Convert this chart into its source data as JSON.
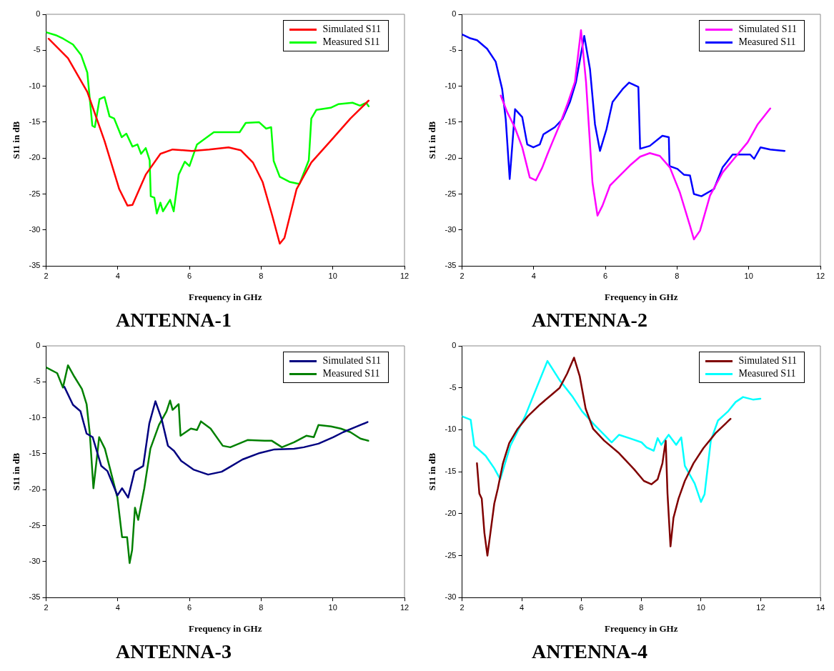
{
  "chart_data": [
    {
      "type": "line",
      "title": "ANTENNA-1",
      "xlabel": "Frequency in GHz",
      "ylabel": "S11 in dB",
      "xlim": [
        2,
        12
      ],
      "ylim": [
        -35,
        0
      ],
      "xticks": [
        2,
        4,
        6,
        8,
        10,
        12
      ],
      "yticks": [
        -35,
        -30,
        -25,
        -20,
        -15,
        -10,
        -5,
        0
      ],
      "grid": false,
      "legend": "top right",
      "marker": "none",
      "line_style": "solid",
      "series": [
        {
          "name": "Simulated S11",
          "color": "#ff0000",
          "x": [
            2.07,
            2.61,
            3.15,
            3.63,
            4.04,
            4.27,
            4.41,
            4.78,
            5.19,
            5.53,
            6.07,
            6.55,
            7.09,
            7.43,
            7.77,
            8.04,
            8.31,
            8.52,
            8.65,
            8.99,
            9.4,
            9.94,
            10.49,
            11.0
          ],
          "values": [
            -3.4,
            -6.1,
            -10.8,
            -17.6,
            -24.3,
            -26.6,
            -26.5,
            -22.3,
            -19.4,
            -18.8,
            -19.0,
            -18.8,
            -18.5,
            -18.9,
            -20.6,
            -23.3,
            -28.0,
            -31.9,
            -31.1,
            -24.3,
            -20.6,
            -17.6,
            -14.5,
            -12.0
          ]
        },
        {
          "name": "Measured S11",
          "color": "#00ff00",
          "x": [
            2.0,
            2.27,
            2.48,
            2.75,
            2.98,
            3.15,
            3.29,
            3.36,
            3.49,
            3.63,
            3.77,
            3.9,
            4.11,
            4.24,
            4.41,
            4.55,
            4.65,
            4.78,
            4.89,
            4.92,
            5.02,
            5.09,
            5.19,
            5.26,
            5.46,
            5.56,
            5.7,
            5.87,
            6.0,
            6.21,
            6.68,
            7.09,
            7.4,
            7.57,
            7.94,
            8.14,
            8.28,
            8.35,
            8.52,
            8.79,
            9.07,
            9.33,
            9.4,
            9.54,
            9.94,
            10.15,
            10.55,
            10.76,
            10.93,
            11.0
          ],
          "values": [
            -2.5,
            -2.9,
            -3.4,
            -4.2,
            -5.7,
            -8.1,
            -15.5,
            -15.7,
            -11.8,
            -11.5,
            -14.2,
            -14.5,
            -17.1,
            -16.6,
            -18.4,
            -18.1,
            -19.4,
            -18.6,
            -20.3,
            -25.3,
            -25.5,
            -27.7,
            -26.2,
            -27.4,
            -25.8,
            -27.4,
            -22.3,
            -20.5,
            -21.1,
            -18.1,
            -16.4,
            -16.4,
            -16.4,
            -15.1,
            -15.0,
            -15.9,
            -15.7,
            -20.4,
            -22.6,
            -23.3,
            -23.6,
            -20.3,
            -14.5,
            -13.3,
            -13.0,
            -12.5,
            -12.3,
            -12.7,
            -12.3,
            -12.8
          ]
        }
      ]
    },
    {
      "type": "line",
      "title": "ANTENNA-2",
      "xlabel": "Frequency in GHz",
      "ylabel": "S11 in dB",
      "xlim": [
        2,
        12
      ],
      "ylim": [
        -35,
        0
      ],
      "xticks": [
        2,
        4,
        6,
        8,
        10,
        12
      ],
      "yticks": [
        -35,
        -30,
        -25,
        -20,
        -15,
        -10,
        -5,
        0
      ],
      "grid": false,
      "legend": "top right",
      "marker": "none",
      "line_style": "solid",
      "series": [
        {
          "name": "Simulated S11",
          "color": "#ff00ff",
          "x": [
            3.08,
            3.26,
            3.47,
            3.68,
            3.89,
            4.06,
            4.24,
            4.38,
            4.52,
            4.73,
            4.94,
            5.15,
            5.32,
            5.46,
            5.64,
            5.78,
            5.92,
            6.13,
            6.41,
            6.69,
            6.97,
            7.24,
            7.52,
            7.8,
            8.08,
            8.36,
            8.47,
            8.64,
            8.92,
            9.27,
            9.62,
            9.97,
            10.25,
            10.6
          ],
          "values": [
            -11.3,
            -13.6,
            -15.7,
            -18.5,
            -22.7,
            -23.1,
            -21.3,
            -19.5,
            -17.8,
            -15.3,
            -12.5,
            -9.4,
            -2.2,
            -9.4,
            -23.4,
            -28.0,
            -26.6,
            -23.8,
            -22.4,
            -21.0,
            -19.8,
            -19.3,
            -19.7,
            -21.3,
            -24.8,
            -29.4,
            -31.3,
            -30.1,
            -25.2,
            -22.0,
            -19.9,
            -17.8,
            -15.3,
            -13.1
          ]
        },
        {
          "name": "Measured S11",
          "color": "#0000ff",
          "x": [
            2.0,
            2.21,
            2.42,
            2.7,
            2.94,
            3.12,
            3.22,
            3.33,
            3.48,
            3.68,
            3.82,
            3.99,
            4.17,
            4.27,
            4.59,
            4.8,
            5.01,
            5.18,
            5.41,
            5.57,
            5.71,
            5.85,
            6.03,
            6.2,
            6.48,
            6.66,
            6.92,
            6.97,
            7.24,
            7.59,
            7.77,
            7.79,
            8.01,
            8.19,
            8.36,
            8.47,
            8.68,
            9.03,
            9.27,
            9.55,
            10.04,
            10.15,
            10.33,
            10.6,
            11.0
          ],
          "values": [
            -2.8,
            -3.3,
            -3.6,
            -4.8,
            -6.6,
            -10.4,
            -14.6,
            -22.9,
            -13.2,
            -14.3,
            -18.1,
            -18.5,
            -18.1,
            -16.7,
            -15.7,
            -14.6,
            -12.2,
            -9.4,
            -3.0,
            -7.6,
            -15.3,
            -19.0,
            -16.0,
            -12.2,
            -10.4,
            -9.5,
            -10.1,
            -18.7,
            -18.3,
            -16.9,
            -17.1,
            -21.1,
            -21.5,
            -22.3,
            -22.4,
            -25.0,
            -25.3,
            -24.3,
            -21.3,
            -19.5,
            -19.5,
            -20.1,
            -18.5,
            -18.8,
            -19.0
          ]
        }
      ]
    },
    {
      "type": "line",
      "title": "ANTENNA-3",
      "xlabel": "Frequency in GHz",
      "ylabel": "S11 in dB",
      "xlim": [
        2,
        12
      ],
      "ylim": [
        -35,
        0
      ],
      "xticks": [
        2,
        4,
        6,
        8,
        10,
        12
      ],
      "yticks": [
        -35,
        -30,
        -25,
        -20,
        -15,
        -10,
        -5,
        0
      ],
      "grid": false,
      "legend": "top right",
      "marker": "none",
      "line_style": "solid",
      "series": [
        {
          "name": "Simulated S11",
          "color": "#000080",
          "x": [
            2.51,
            2.75,
            2.96,
            3.13,
            3.3,
            3.54,
            3.71,
            3.99,
            4.12,
            4.29,
            4.47,
            4.71,
            4.88,
            5.05,
            5.22,
            5.4,
            5.57,
            5.77,
            6.11,
            6.52,
            6.9,
            7.14,
            7.48,
            7.96,
            8.37,
            8.92,
            9.19,
            9.6,
            10.01,
            10.29,
            10.63,
            10.97
          ],
          "values": [
            -5.7,
            -8.2,
            -9.1,
            -12.2,
            -12.7,
            -16.7,
            -17.4,
            -20.8,
            -19.8,
            -21.1,
            -17.4,
            -16.7,
            -10.8,
            -7.7,
            -10.1,
            -13.9,
            -14.6,
            -16.0,
            -17.2,
            -17.9,
            -17.5,
            -16.8,
            -15.8,
            -14.9,
            -14.4,
            -14.3,
            -14.1,
            -13.6,
            -12.7,
            -12.0,
            -11.3,
            -10.6
          ]
        },
        {
          "name": "Measured S11",
          "color": "#008000",
          "x": [
            2.0,
            2.31,
            2.47,
            2.61,
            2.79,
            3.0,
            3.13,
            3.22,
            3.32,
            3.4,
            3.48,
            3.64,
            3.78,
            3.99,
            4.12,
            4.26,
            4.33,
            4.4,
            4.48,
            4.57,
            4.74,
            4.91,
            5.15,
            5.36,
            5.46,
            5.53,
            5.7,
            5.75,
            6.04,
            6.21,
            6.32,
            6.59,
            6.93,
            7.14,
            7.62,
            8.1,
            8.3,
            8.58,
            8.92,
            9.26,
            9.47,
            9.6,
            9.95,
            10.22,
            10.49,
            10.77,
            10.99
          ],
          "values": [
            -3.0,
            -3.8,
            -5.8,
            -2.7,
            -4.3,
            -6.0,
            -8.1,
            -12.2,
            -19.8,
            -16.3,
            -12.7,
            -14.3,
            -17.0,
            -21.1,
            -26.6,
            -26.6,
            -30.2,
            -28.4,
            -22.5,
            -24.2,
            -19.8,
            -14.3,
            -11.0,
            -9.1,
            -7.6,
            -8.9,
            -8.1,
            -12.5,
            -11.5,
            -11.7,
            -10.5,
            -11.5,
            -13.9,
            -14.1,
            -13.1,
            -13.2,
            -13.2,
            -14.1,
            -13.4,
            -12.5,
            -12.7,
            -11.0,
            -11.2,
            -11.5,
            -12.0,
            -12.9,
            -13.2
          ]
        }
      ]
    },
    {
      "type": "line",
      "title": "ANTENNA-4",
      "xlabel": "Frequency in GHz",
      "ylabel": "S11 in dB",
      "xlim": [
        2,
        14
      ],
      "ylim": [
        -30,
        0
      ],
      "xticks": [
        2,
        4,
        6,
        8,
        10,
        12,
        14
      ],
      "yticks": [
        -30,
        -25,
        -20,
        -15,
        -10,
        -5,
        0
      ],
      "grid": false,
      "legend": "top right",
      "marker": "none",
      "line_style": "solid",
      "series": [
        {
          "name": "Simulated S11",
          "color": "#800000",
          "x": [
            2.5,
            2.58,
            2.66,
            2.75,
            2.85,
            2.95,
            3.08,
            3.2,
            3.37,
            3.58,
            3.86,
            4.2,
            4.61,
            4.94,
            5.27,
            5.52,
            5.75,
            5.94,
            6.14,
            6.39,
            6.76,
            7.26,
            7.76,
            8.09,
            8.34,
            8.55,
            8.71,
            8.82,
            8.88,
            8.98,
            9.08,
            9.25,
            9.46,
            9.75,
            10.08,
            10.49,
            10.99
          ],
          "values": [
            -14.0,
            -17.6,
            -18.2,
            -22.3,
            -25.0,
            -22.3,
            -18.8,
            -17.0,
            -14.0,
            -11.6,
            -9.9,
            -8.4,
            -7.0,
            -6.0,
            -5.0,
            -3.3,
            -1.4,
            -3.6,
            -7.5,
            -9.9,
            -11.3,
            -12.8,
            -14.7,
            -16.1,
            -16.5,
            -15.9,
            -14.0,
            -11.3,
            -17.6,
            -23.9,
            -20.5,
            -18.2,
            -16.1,
            -14.0,
            -12.2,
            -10.4,
            -8.7
          ]
        },
        {
          "name": "Measured S11",
          "color": "#00ffff",
          "x": [
            2.0,
            2.29,
            2.41,
            2.79,
            3.08,
            3.28,
            3.62,
            4.11,
            4.86,
            5.27,
            5.69,
            6.02,
            6.43,
            6.76,
            7.01,
            7.26,
            7.6,
            8.01,
            8.18,
            8.42,
            8.55,
            8.67,
            8.92,
            9.17,
            9.34,
            9.46,
            9.79,
            10.0,
            10.12,
            10.33,
            10.57,
            10.91,
            11.16,
            11.41,
            11.74,
            11.99
          ],
          "values": [
            -8.4,
            -8.8,
            -11.9,
            -13.1,
            -14.6,
            -15.9,
            -11.9,
            -8.4,
            -1.8,
            -4.1,
            -6.0,
            -7.8,
            -9.4,
            -10.6,
            -11.5,
            -10.6,
            -11.0,
            -11.5,
            -12.1,
            -12.5,
            -11.0,
            -11.8,
            -10.6,
            -11.8,
            -10.9,
            -14.3,
            -16.4,
            -18.6,
            -17.7,
            -11.3,
            -8.9,
            -7.8,
            -6.7,
            -6.1,
            -6.4,
            -6.3
          ]
        }
      ]
    }
  ]
}
